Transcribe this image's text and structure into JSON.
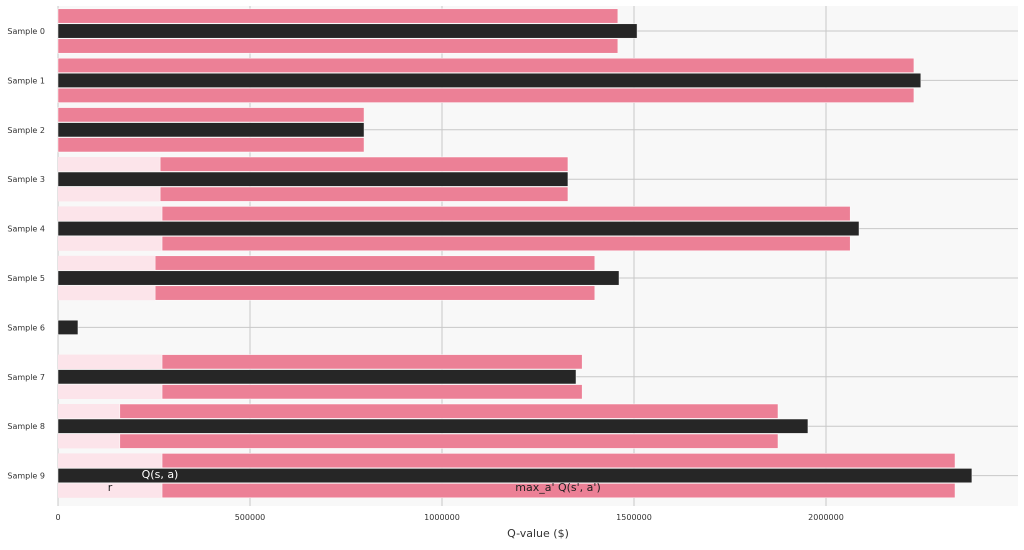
{
  "chart_data": {
    "type": "bar",
    "orientation": "horizontal",
    "categories": [
      "Sample 0",
      "Sample 1",
      "Sample 2",
      "Sample 3",
      "Sample 4",
      "Sample 5",
      "Sample 6",
      "Sample 7",
      "Sample 8",
      "Sample 9"
    ],
    "series": [
      {
        "name": "r",
        "values": [
          0,
          0,
          0,
          266000,
          271000,
          253000,
          0,
          271000,
          161000,
          271000
        ],
        "color": "#fce4ea"
      },
      {
        "name": "max_a' Q(s', a')",
        "values": [
          1458000,
          2229000,
          797000,
          1062000,
          1792000,
          1145000,
          0,
          1094000,
          1714000,
          2065000
        ],
        "color": "#ec8096",
        "stacked_on": "r"
      },
      {
        "name": "Q(s, a)",
        "values": [
          1508000,
          2247000,
          797000,
          1328000,
          2086000,
          1461000,
          52000,
          1349000,
          1953000,
          2380000
        ],
        "color": "#262626"
      }
    ],
    "xlabel": "Q-value ($)",
    "ylabel": "",
    "xlim": [
      0,
      2500000
    ],
    "xticks": [
      "0",
      "500000",
      "1000000",
      "1500000",
      "2000000"
    ],
    "grid": true,
    "background": "#f8f8f8",
    "annotations": [
      "Q(s, a)",
      "r",
      "max_a' Q(s', a')"
    ]
  }
}
